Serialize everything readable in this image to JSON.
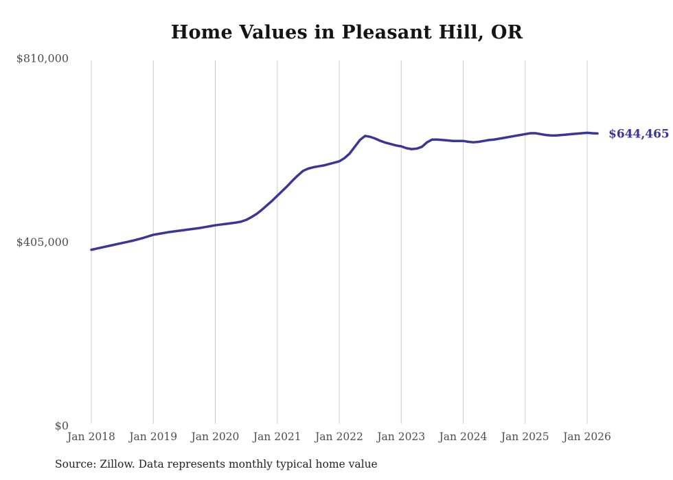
{
  "title": "Home Values in Pleasant Hill, OR",
  "source_note": "Source: Zillow. Data represents monthly typical home value",
  "colors": {
    "line": "#3a3596",
    "grid": "#cccccc",
    "axis_text": "#4d4d4d",
    "title_text": "#141414",
    "annotation_text": "#3a3596",
    "background": "#ffffff"
  },
  "chart_data": {
    "type": "line",
    "title": "Home Values in Pleasant Hill, OR",
    "xlabel": "",
    "ylabel": "",
    "legend": "none",
    "grid": "vertical-only",
    "ylim": [
      0,
      810000
    ],
    "y_ticks": [
      0,
      405000,
      810000
    ],
    "y_tick_labels": [
      "$0",
      "$405,000",
      "$810,000"
    ],
    "x_tick_labels": [
      "Jan 2018",
      "Jan 2019",
      "Jan 2020",
      "Jan 2021",
      "Jan 2022",
      "Jan 2023",
      "Jan 2024",
      "Jan 2025",
      "Jan 2026"
    ],
    "x_start": "Jan 2018",
    "x_end": "Mar 2026",
    "frequency": "monthly",
    "end_annotation": {
      "text": "$644,465",
      "value": 644465
    },
    "series": [
      {
        "name": "Typical home value",
        "values": [
          388000,
          390500,
          393000,
          395500,
          398000,
          400500,
          403000,
          405500,
          408000,
          411000,
          414000,
          417500,
          421000,
          423000,
          425000,
          427000,
          428500,
          430000,
          431500,
          433000,
          434500,
          436000,
          438000,
          440000,
          442000,
          443500,
          445000,
          446500,
          448000,
          450000,
          454000,
          460000,
          467000,
          476000,
          486000,
          496000,
          507000,
          518000,
          529000,
          541000,
          552000,
          562000,
          567000,
          570000,
          572000,
          574000,
          577000,
          580000,
          583000,
          590000,
          600000,
          615000,
          630000,
          639000,
          637000,
          633000,
          628000,
          624000,
          621000,
          618000,
          616000,
          612000,
          610000,
          611000,
          615000,
          625000,
          631000,
          631000,
          630000,
          629000,
          628000,
          628000,
          628000,
          626000,
          625000,
          626000,
          628000,
          630000,
          631000,
          633000,
          635000,
          637000,
          639000,
          641000,
          643000,
          645000,
          645000,
          643000,
          641000,
          640000,
          640000,
          641000,
          642000,
          643000,
          644000,
          645000,
          646000,
          645000,
          644465
        ]
      }
    ]
  }
}
